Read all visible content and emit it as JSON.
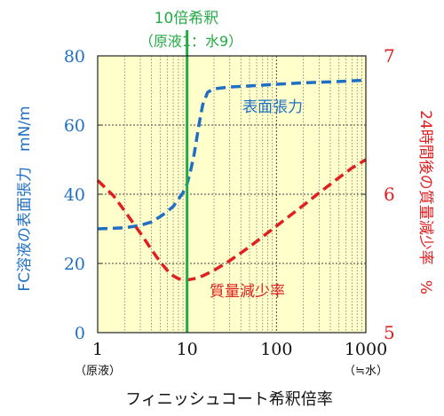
{
  "chart_data": {
    "type": "line",
    "x_scale": "log",
    "xlim": [
      1,
      1000
    ],
    "y_left_lim": [
      0,
      80
    ],
    "y_right_lim": [
      5,
      7
    ],
    "xlabel": "フィニッシュコート希釈倍率",
    "ylabel_left": "FC溶液の表面張力　mN/m",
    "ylabel_right": "24時間後の質量減少率　%",
    "x_ticks": [
      {
        "value": 1,
        "label": "1",
        "sublabel": "（原液）"
      },
      {
        "value": 10,
        "label": "10",
        "sublabel": ""
      },
      {
        "value": 100,
        "label": "100",
        "sublabel": ""
      },
      {
        "value": 1000,
        "label": "1000",
        "sublabel": "（≒水）"
      }
    ],
    "y_left_ticks": [
      0,
      20,
      40,
      60,
      80
    ],
    "y_left_tick_labels": [
      "0",
      "20",
      "40",
      "60",
      "80"
    ],
    "y_right_ticks": [
      5,
      6,
      7
    ],
    "y_right_tick_labels": [
      "5",
      "6",
      "7"
    ],
    "grid": true,
    "marker_line": {
      "x": 10,
      "label_line1": "10倍希釈",
      "label_line2": "（原液1：水9）",
      "color": "#22aa44"
    },
    "series": [
      {
        "name": "表面張力",
        "axis": "left",
        "color": "#1f6fc4",
        "x": [
          1,
          2,
          3,
          4,
          5,
          6,
          7,
          8,
          9,
          10,
          11,
          12,
          13,
          14,
          15,
          17,
          20,
          30,
          50,
          100,
          200,
          500,
          1000
        ],
        "y": [
          30,
          30.3,
          31,
          32,
          33.5,
          35,
          36.5,
          38.5,
          40.5,
          43,
          47,
          51.5,
          57,
          62,
          66,
          69.5,
          70.5,
          71,
          71.3,
          71.8,
          72.2,
          72.6,
          73
        ]
      },
      {
        "name": "質量減少率",
        "axis": "right",
        "color": "#e02020",
        "x": [
          1,
          1.5,
          2,
          3,
          4,
          5,
          6,
          7,
          8,
          9,
          10,
          12,
          15,
          20,
          30,
          50,
          100,
          200,
          300,
          500,
          700,
          1000
        ],
        "y": [
          6.1,
          5.99,
          5.88,
          5.72,
          5.6,
          5.51,
          5.45,
          5.41,
          5.39,
          5.38,
          5.38,
          5.39,
          5.41,
          5.45,
          5.52,
          5.62,
          5.77,
          5.92,
          6.01,
          6.12,
          6.19,
          6.25
        ]
      }
    ]
  }
}
